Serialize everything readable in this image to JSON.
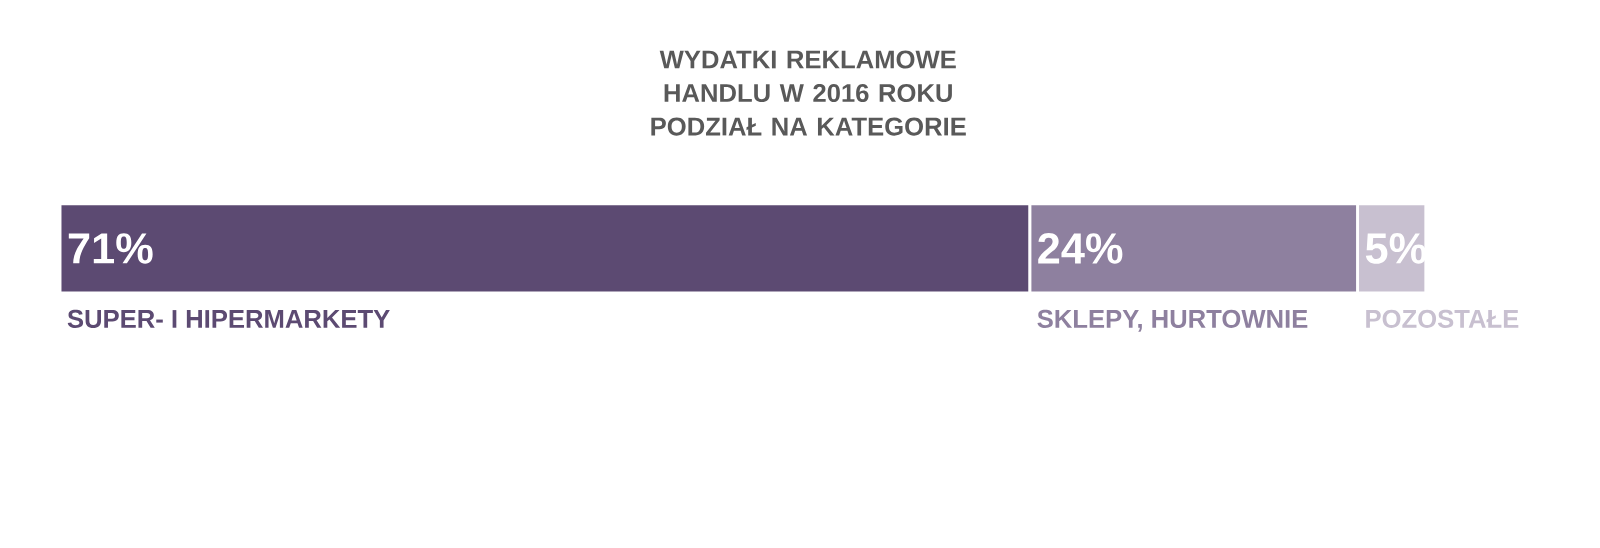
{
  "chart_data": {
    "type": "bar",
    "title": "WYDATKI REKLAMOWE HANDLU W 2016 ROKU PODZIAŁ NA KATEGORIE",
    "orientation": "horizontal",
    "stacked": true,
    "categories": [
      null
    ],
    "series": [
      {
        "name": "SUPER- I HIPERMARKETY",
        "color": "#5c4a72",
        "values": [
          71
        ],
        "value_labels": [
          "71%"
        ]
      },
      {
        "name": "SKLEPY, HURTOWNIE",
        "color": "#8e809f",
        "values": [
          24
        ],
        "value_labels": [
          "24%"
        ]
      },
      {
        "name": "POZOSTAŁE",
        "color": "#c8c0d0",
        "values": [
          5
        ],
        "value_labels": [
          "5%"
        ]
      }
    ]
  }
}
